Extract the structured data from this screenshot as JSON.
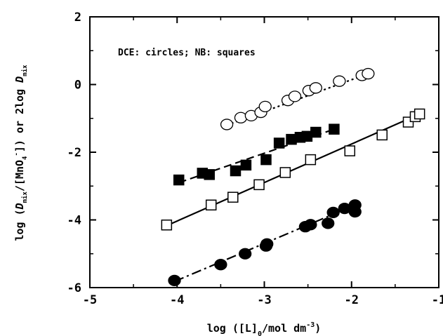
{
  "chart_data": {
    "type": "scatter",
    "title": "",
    "xlabel": "log ([L]₀/mol dm⁻³)",
    "ylabel": "log (D_mix/[MnO₄⁻]) or 2log D_mix",
    "xlabel_parts": {
      "pre": "log ([L]",
      "sub": "0",
      "mid": "/mol dm",
      "sup": "-3",
      "post": ")"
    },
    "ylabel_parts": {
      "pre": "log (",
      "d1": "D",
      "sub1": "mix",
      "mid": "/[MnO",
      "sub2": "4",
      "sup": "-",
      "mid2": "]) or 2log ",
      "d2": "D",
      "sub3": "mix"
    },
    "annotation": "DCE: circles; NB: squares",
    "xlim": [
      -5,
      -1
    ],
    "ylim": [
      -6,
      2
    ],
    "x_ticks": [
      "-5",
      "-4",
      "-3",
      "-2",
      "-1"
    ],
    "y_ticks": [
      "2",
      "0",
      "-2",
      "-4",
      "-6"
    ],
    "grid": false,
    "series": [
      {
        "marker": "circle-open",
        "line": "dotted",
        "points": [
          [
            -3.43,
            -1.18
          ],
          [
            -3.27,
            -0.98
          ],
          [
            -3.15,
            -0.92
          ],
          [
            -3.04,
            -0.82
          ],
          [
            -2.99,
            -0.65
          ],
          [
            -2.73,
            -0.47
          ],
          [
            -2.65,
            -0.35
          ],
          [
            -2.49,
            -0.18
          ],
          [
            -2.41,
            -0.1
          ],
          [
            -2.14,
            0.1
          ],
          [
            -1.88,
            0.27
          ],
          [
            -1.81,
            0.32
          ]
        ],
        "fit": [
          [
            -3.43,
            -1.2
          ],
          [
            -1.81,
            0.32
          ]
        ]
      },
      {
        "marker": "square-filled",
        "line": "dashed",
        "points": [
          [
            -3.98,
            -2.82
          ],
          [
            -3.71,
            -2.62
          ],
          [
            -3.63,
            -2.66
          ],
          [
            -3.33,
            -2.55
          ],
          [
            -3.21,
            -2.38
          ],
          [
            -2.98,
            -2.22
          ],
          [
            -2.83,
            -1.73
          ],
          [
            -2.69,
            -1.62
          ],
          [
            -2.59,
            -1.56
          ],
          [
            -2.51,
            -1.53
          ],
          [
            -2.41,
            -1.41
          ],
          [
            -2.2,
            -1.32
          ]
        ],
        "fit": [
          [
            -3.98,
            -2.9
          ],
          [
            -2.2,
            -1.32
          ]
        ]
      },
      {
        "marker": "square-open",
        "line": "solid",
        "points": [
          [
            -4.12,
            -4.15
          ],
          [
            -3.61,
            -3.56
          ],
          [
            -3.36,
            -3.33
          ],
          [
            -3.06,
            -2.96
          ],
          [
            -2.76,
            -2.6
          ],
          [
            -2.47,
            -2.22
          ],
          [
            -2.02,
            -1.96
          ],
          [
            -1.65,
            -1.49
          ],
          [
            -1.35,
            -1.11
          ],
          [
            -1.27,
            -0.95
          ],
          [
            -1.22,
            -0.87
          ]
        ],
        "fit": [
          [
            -4.12,
            -4.17
          ],
          [
            -1.22,
            -0.87
          ]
        ]
      },
      {
        "marker": "circle-filled",
        "line": "dashdot",
        "points": [
          [
            -4.03,
            -5.79
          ],
          [
            -3.5,
            -5.32
          ],
          [
            -3.22,
            -5.0
          ],
          [
            -2.98,
            -4.77
          ],
          [
            -2.97,
            -4.71
          ],
          [
            -2.53,
            -4.2
          ],
          [
            -2.47,
            -4.14
          ],
          [
            -2.27,
            -4.1
          ],
          [
            -2.21,
            -3.78
          ],
          [
            -2.08,
            -3.66
          ],
          [
            -1.96,
            -3.56
          ],
          [
            -1.96,
            -3.76
          ]
        ],
        "fit": [
          [
            -4.03,
            -5.82
          ],
          [
            -1.96,
            -3.56
          ]
        ]
      }
    ]
  }
}
